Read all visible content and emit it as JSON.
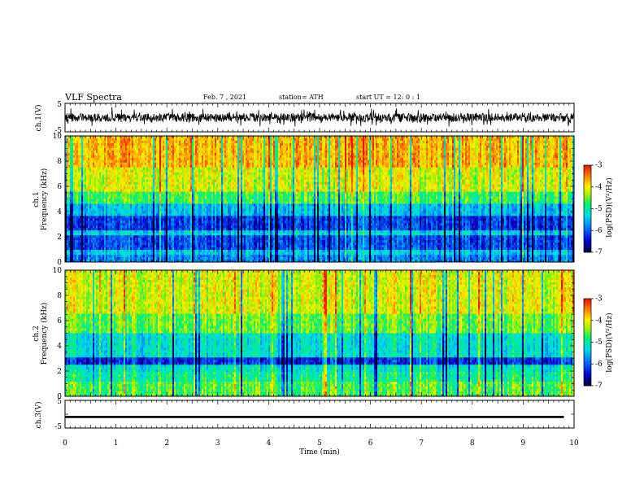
{
  "header": {
    "title": "VLF Spectra",
    "date": "Feb. 7 , 2021",
    "station": "station= ATH",
    "start": "start UT = 12: 0 : 1"
  },
  "chart_data": [
    {
      "type": "line",
      "panel": "ch1-waveform",
      "ylabel": "ch.1(V)",
      "yticks": [
        "5",
        "-5"
      ],
      "ylim": [
        -5,
        5
      ],
      "xlim": [
        0,
        10
      ],
      "description_level": "noisy waveform, approx -3 to 3 V"
    },
    {
      "type": "heatmap",
      "panel": "ch1-spectrogram",
      "ylabel": "ch.1\nFrequency (kHz)",
      "ylabel_channel": "ch.1",
      "ylabel_axis": "Frequency (kHz)",
      "yticks": [
        "0",
        "2",
        "4",
        "6",
        "8",
        "10"
      ],
      "ylim": [
        0,
        10
      ],
      "xlim": [
        0,
        10
      ],
      "colorbar": {
        "label": "log(PSD)(V²/Hz)",
        "ticks": [
          "-3",
          "-4",
          "-5",
          "-6",
          "-7"
        ],
        "range": [
          -7,
          -3
        ],
        "colors": [
          "#000000",
          "#0000ff",
          "#00c0ff",
          "#00ff80",
          "#ffff00",
          "#ff8000",
          "#ff0000",
          "#ffffff"
        ]
      }
    },
    {
      "type": "heatmap",
      "panel": "ch2-spectrogram",
      "ylabel": "ch.2\nFrequency (kHz)",
      "ylabel_channel": "ch.2",
      "ylabel_axis": "Frequency (kHz)",
      "yticks": [
        "0",
        "2",
        "4",
        "6",
        "8",
        "10"
      ],
      "ylim": [
        0,
        10
      ],
      "xlim": [
        0,
        10
      ],
      "colorbar": {
        "label": "log(PSD)(V²/Hz)",
        "ticks": [
          "-3",
          "-4",
          "-5",
          "-6",
          "-7"
        ],
        "range": [
          -7,
          -3
        ],
        "colors": [
          "#000000",
          "#0000ff",
          "#00c0ff",
          "#00ff80",
          "#ffff00",
          "#ff8000",
          "#ff0000",
          "#ffffff"
        ]
      }
    },
    {
      "type": "line",
      "panel": "ch3-waveform",
      "ylabel": "ch.3(V)",
      "yticks": [
        "5",
        "-5"
      ],
      "ylim": [
        -5,
        5
      ],
      "xlim": [
        0,
        10
      ],
      "description_level": "flat thick line near -1 V"
    }
  ],
  "xaxis": {
    "label": "Time (min)",
    "ticks": [
      "0",
      "1",
      "2",
      "3",
      "4",
      "5",
      "6",
      "7",
      "8",
      "9",
      "10"
    ],
    "range": [
      0,
      10
    ]
  }
}
